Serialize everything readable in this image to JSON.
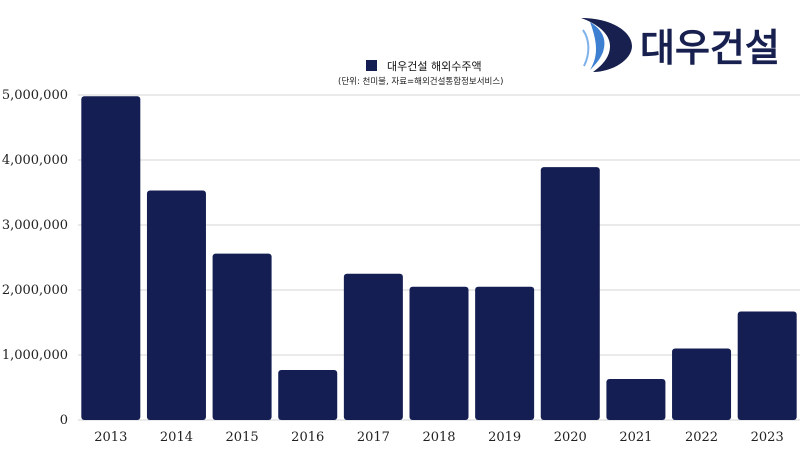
{
  "logo": {
    "text": "대우건설"
  },
  "legend": {
    "label": "대우건설 해외수주액"
  },
  "note": "(단위: 천미불, 자료=해외건설통합정보서비스)",
  "colors": {
    "bar": "#151e52",
    "grid": "#d4d4d4",
    "logo_dark": "#17204f",
    "logo_light": "#3d7fd0"
  },
  "chart_data": {
    "type": "bar",
    "categories": [
      "2013",
      "2014",
      "2015",
      "2016",
      "2017",
      "2018",
      "2019",
      "2020",
      "2021",
      "2022",
      "2023"
    ],
    "series": [
      {
        "name": "대우건설 해외수주액",
        "values": [
          4980000,
          3530000,
          2560000,
          770000,
          2250000,
          2050000,
          2050000,
          3890000,
          630000,
          1100000,
          1670000
        ]
      }
    ],
    "yticks": [
      "0",
      "1,000,000",
      "2,000,000",
      "3,000,000",
      "4,000,000",
      "5,000,000"
    ],
    "ylim": [
      0,
      5000000
    ],
    "grid": true,
    "legend_position": "top-center"
  }
}
